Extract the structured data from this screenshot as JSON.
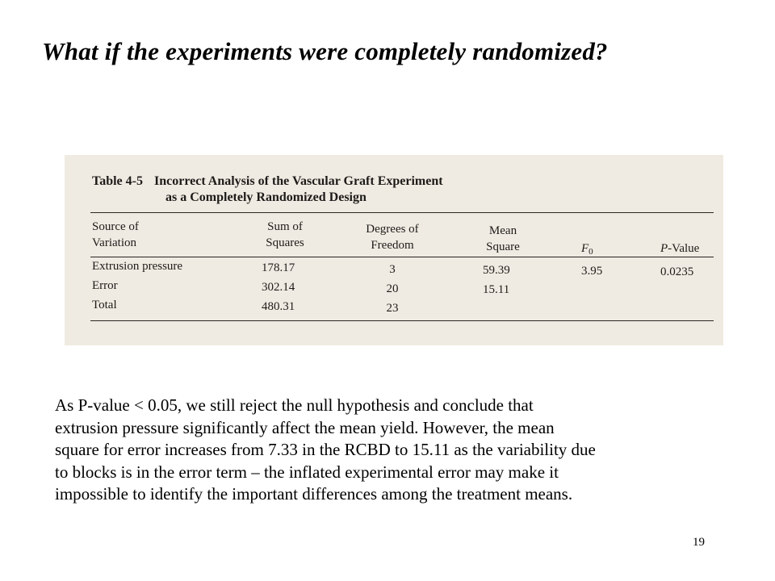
{
  "slide": {
    "title": "What if the experiments were completely randomized?",
    "page_number": "19",
    "body_text": "As P-value < 0.05, we still reject the null hypothesis and conclude that\nextrusion pressure significantly affect the mean yield.  However, the mean\nsquare for error increases from 7.33 in the RCBD to 15.11 as the variability due\nto blocks is in the error term – the inflated experimental error may make it\nimpossible to identify the important differences among the treatment means."
  },
  "table": {
    "label": "Table 4-5",
    "caption_line1": "Incorrect Analysis of the Vascular Graft Experiment",
    "caption_line2": "as a Completely Randomized Design",
    "headers": {
      "source_1": "Source of",
      "source_2": "Variation",
      "ss_1": "Sum of",
      "ss_2": "Squares",
      "df_1": "Degrees of",
      "df_2": "Freedom",
      "ms_1": "Mean",
      "ms_2": "Square",
      "f_main": "F",
      "f_sub": "0",
      "p_italic": "P",
      "p_rest": "-Value"
    },
    "rows": [
      {
        "source": "Extrusion pressure",
        "ss": "178.17",
        "df": "3",
        "ms": "59.39",
        "f": "3.95",
        "p": "0.0235"
      },
      {
        "source": "Error",
        "ss": "302.14",
        "df": "20",
        "ms": "15.11",
        "f": "",
        "p": ""
      },
      {
        "source": "Total",
        "ss": "480.31",
        "df": "23",
        "ms": "",
        "f": "",
        "p": ""
      }
    ]
  }
}
